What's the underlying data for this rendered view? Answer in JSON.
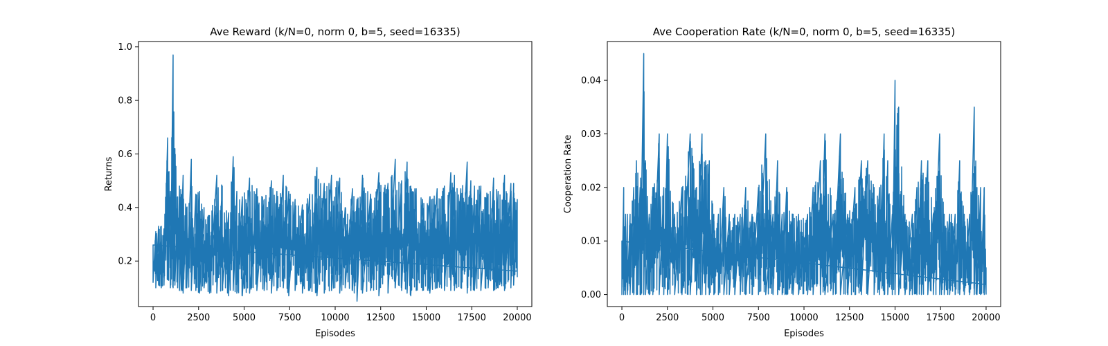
{
  "chart_data": [
    {
      "type": "line",
      "title": "Ave Reward (k/N=0, norm 0, b=5, seed=16335)",
      "xlabel": "Episodes",
      "ylabel": "Returns",
      "xlim": [
        -800,
        20800
      ],
      "ylim": [
        0.03,
        1.02
      ],
      "xticks": [
        0,
        2500,
        5000,
        7500,
        10000,
        12500,
        15000,
        17500,
        20000
      ],
      "xtick_labels": [
        "0",
        "2500",
        "5000",
        "7500",
        "10000",
        "12500",
        "15000",
        "17500",
        "20000"
      ],
      "yticks": [
        0.2,
        0.4,
        0.6,
        0.8,
        1.0
      ],
      "ytick_labels": [
        "0.2",
        "0.4",
        "0.6",
        "0.8",
        "1.0"
      ],
      "grid": false,
      "series_color": "#1f77b4",
      "series": [
        {
          "x": [
            0,
            150,
            300,
            450,
            600,
            800,
            950,
            1100,
            1200,
            1350,
            1450,
            1650,
            1850,
            2100,
            2350,
            2550,
            2800,
            3100,
            3500,
            3800,
            4150,
            4400,
            4600,
            4900,
            5300,
            5700,
            6100,
            6500,
            6800,
            7150,
            7450,
            7800,
            8200,
            8600,
            9000,
            9400,
            9800,
            10250,
            10550,
            10950,
            11200,
            11500,
            11950,
            12400,
            12900,
            13300,
            13650,
            13950,
            14150,
            14450,
            14800,
            15200,
            15600,
            16000,
            16350,
            16550,
            16900,
            17250,
            17450,
            17650,
            18000,
            18400,
            18700,
            18950,
            19300,
            19650,
            19800,
            20000
          ],
          "y_high": [
            0.26,
            0.31,
            0.33,
            0.33,
            0.32,
            0.66,
            0.46,
            0.97,
            0.62,
            0.44,
            0.48,
            0.52,
            0.4,
            0.58,
            0.45,
            0.46,
            0.4,
            0.37,
            0.52,
            0.48,
            0.38,
            0.59,
            0.46,
            0.44,
            0.51,
            0.47,
            0.43,
            0.5,
            0.46,
            0.52,
            0.46,
            0.43,
            0.41,
            0.45,
            0.55,
            0.49,
            0.52,
            0.51,
            0.4,
            0.47,
            0.43,
            0.52,
            0.45,
            0.53,
            0.49,
            0.58,
            0.5,
            0.57,
            0.48,
            0.47,
            0.43,
            0.44,
            0.47,
            0.48,
            0.53,
            0.52,
            0.47,
            0.57,
            0.5,
            0.48,
            0.48,
            0.45,
            0.51,
            0.46,
            0.52,
            0.49,
            0.49,
            0.43
          ],
          "y_low": [
            0.12,
            0.1,
            0.11,
            0.1,
            0.11,
            0.13,
            0.1,
            0.1,
            0.11,
            0.1,
            0.09,
            0.08,
            0.1,
            0.09,
            0.09,
            0.08,
            0.1,
            0.08,
            0.08,
            0.09,
            0.07,
            0.09,
            0.08,
            0.07,
            0.08,
            0.09,
            0.09,
            0.08,
            0.09,
            0.1,
            0.07,
            0.09,
            0.08,
            0.09,
            0.07,
            0.08,
            0.09,
            0.08,
            0.1,
            0.09,
            0.05,
            0.08,
            0.09,
            0.07,
            0.08,
            0.1,
            0.09,
            0.08,
            0.07,
            0.09,
            0.09,
            0.08,
            0.1,
            0.09,
            0.09,
            0.09,
            0.1,
            0.08,
            0.09,
            0.09,
            0.09,
            0.1,
            0.09,
            0.1,
            0.09,
            0.1,
            0.11,
            0.14
          ]
        }
      ]
    },
    {
      "type": "line",
      "title": "Ave Cooperation Rate (k/N=0, norm 0, b=5, seed=16335)",
      "xlabel": "Episodes",
      "ylabel": "Cooperation Rate",
      "xlim": [
        -800,
        20800
      ],
      "ylim": [
        -0.00225,
        0.04725
      ],
      "xticks": [
        0,
        2500,
        5000,
        7500,
        10000,
        12500,
        15000,
        17500,
        20000
      ],
      "xtick_labels": [
        "0",
        "2500",
        "5000",
        "7500",
        "10000",
        "12500",
        "15000",
        "17500",
        "20000"
      ],
      "yticks": [
        0.0,
        0.01,
        0.02,
        0.03,
        0.04
      ],
      "ytick_labels": [
        "0.00",
        "0.01",
        "0.02",
        "0.03",
        "0.04"
      ],
      "grid": false,
      "series_color": "#1f77b4",
      "series": [
        {
          "x": [
            0,
            100,
            200,
            300,
            450,
            650,
            800,
            1000,
            1200,
            1300,
            1500,
            1700,
            2050,
            2300,
            2500,
            2900,
            3300,
            3750,
            4100,
            4400,
            4600,
            4800,
            5050,
            5300,
            5600,
            5900,
            6200,
            6500,
            6800,
            7150,
            7500,
            7900,
            8300,
            8550,
            8800,
            9050,
            9400,
            9700,
            10200,
            10500,
            10900,
            11150,
            11600,
            12000,
            12400,
            12800,
            13150,
            13500,
            13850,
            14150,
            14400,
            14600,
            14850,
            15000,
            15200,
            15550,
            15950,
            16200,
            16450,
            16800,
            17100,
            17450,
            17700,
            18000,
            18300,
            18550,
            18800,
            19100,
            19350,
            19500,
            19700,
            19900,
            20000
          ],
          "y_high": [
            0.01,
            0.02,
            0.015,
            0.015,
            0.015,
            0.02,
            0.025,
            0.02,
            0.045,
            0.025,
            0.015,
            0.02,
            0.03,
            0.02,
            0.03,
            0.015,
            0.02,
            0.03,
            0.02,
            0.03,
            0.025,
            0.025,
            0.015,
            0.015,
            0.02,
            0.015,
            0.015,
            0.015,
            0.02,
            0.015,
            0.02,
            0.03,
            0.015,
            0.025,
            0.015,
            0.02,
            0.015,
            0.015,
            0.015,
            0.02,
            0.025,
            0.03,
            0.015,
            0.03,
            0.015,
            0.02,
            0.025,
            0.025,
            0.02,
            0.02,
            0.03,
            0.025,
            0.015,
            0.04,
            0.035,
            0.015,
            0.015,
            0.02,
            0.025,
            0.025,
            0.015,
            0.03,
            0.015,
            0.015,
            0.015,
            0.025,
            0.015,
            0.015,
            0.035,
            0.02,
            0.02,
            0.02,
            0.005
          ],
          "y_low": [
            0.0,
            0.0,
            0.0,
            0.0,
            0.0,
            0.0,
            0.0,
            0.0,
            0.0,
            0.0,
            0.0,
            0.0,
            0.0,
            0.0,
            0.0,
            0.0,
            0.0,
            0.0,
            0.0,
            0.0,
            0.0,
            0.0,
            0.0,
            0.0,
            0.0,
            0.0,
            0.0,
            0.0,
            0.0,
            0.0,
            0.0,
            0.0,
            0.0,
            0.0,
            0.0,
            0.0,
            0.0,
            0.0,
            0.0,
            0.0,
            0.0,
            0.0,
            0.0,
            0.0,
            0.0,
            0.0,
            0.0,
            0.0,
            0.0,
            0.0,
            0.0,
            0.0,
            0.0,
            0.0,
            0.0,
            0.0,
            0.0,
            0.0,
            0.0,
            0.0,
            0.0,
            0.0,
            0.0,
            0.0,
            0.0,
            0.0,
            0.0,
            0.0,
            0.0,
            0.0,
            0.0,
            0.0,
            0.0
          ]
        }
      ]
    }
  ]
}
